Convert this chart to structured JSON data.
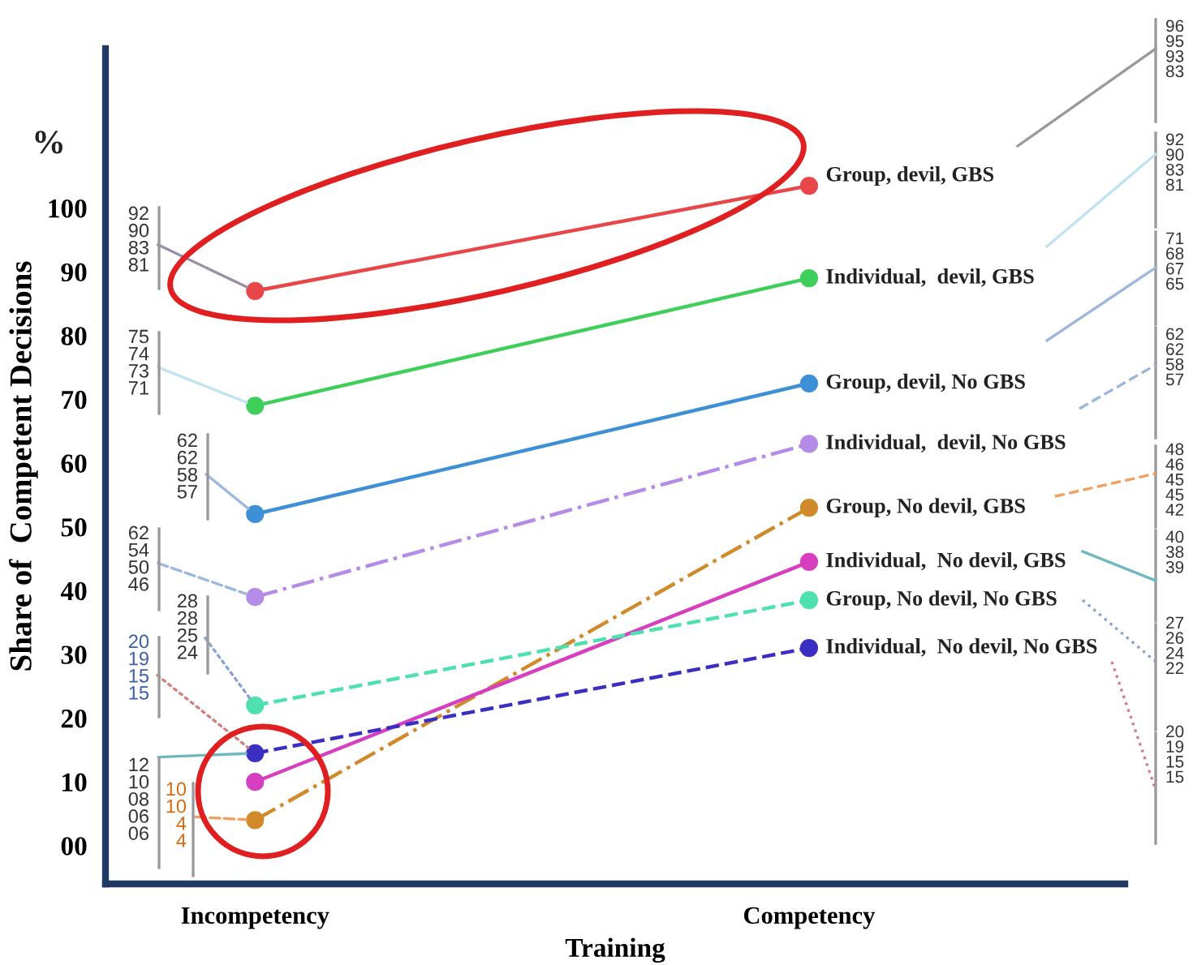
{
  "chart_data": {
    "type": "line",
    "xlabel": "Training",
    "ylabel": "Share of  Competent Decisions",
    "categories": [
      "Incompetency",
      "Competency"
    ],
    "ylim": [
      -6,
      125
    ],
    "yticks": [
      {
        "value": 0,
        "label": "00"
      },
      10,
      20,
      30,
      40,
      50,
      60,
      70,
      80,
      90,
      100
    ],
    "marker": "circle",
    "grid": false,
    "legend": false,
    "series": [
      {
        "name": "Group, devil, GBS",
        "color": "#e8474a",
        "line_style": "solid",
        "values": [
          87,
          103.5
        ]
      },
      {
        "name": "Individual,  devil, GBS",
        "color": "#3ecf5a",
        "line_style": "solid",
        "values": [
          69,
          89
        ]
      },
      {
        "name": "Group, devil, No GBS",
        "color": "#3d8fd6",
        "line_style": "solid",
        "values": [
          52,
          72.5
        ]
      },
      {
        "name": "Individual,  devil, No GBS",
        "color": "#b58be8",
        "line_style": "dashdot",
        "values": [
          39,
          63
        ]
      },
      {
        "name": "Group, No devil, GBS",
        "color": "#d08a2a",
        "line_style": "dashdot",
        "values": [
          4,
          53
        ]
      },
      {
        "name": "Individual,  No devil, GBS",
        "color": "#d63fbf",
        "line_style": "solid",
        "values": [
          10,
          44.5
        ]
      },
      {
        "name": "Group, No devil, No GBS",
        "color": "#4fe0b0",
        "line_style": "dashed",
        "values": [
          22,
          38.5
        ]
      },
      {
        "name": "Individual,  No devil, No GBS",
        "color": "#3a2fc0",
        "line_style": "dashed",
        "values": [
          14.5,
          31
        ]
      }
    ],
    "annotations": [
      "%",
      {
        "text": "92\n90\n83\n81",
        "x": "Incompetency",
        "y": 87
      },
      {
        "text": "75\n74\n73\n71",
        "x": "Incompetency",
        "y": 69
      },
      {
        "text": "62\n62\n58\n57",
        "x": "Incompetency",
        "y": 52
      },
      {
        "text": "62\n54\n50\n46",
        "x": "Incompetency",
        "y": 39
      },
      {
        "text": "28\n28\n25\n24",
        "x": "Incompetency",
        "y": 22
      },
      {
        "text": "20\n19\n15\n15",
        "x": "Incompetency",
        "y": 14.5
      },
      {
        "text": "12\n10\n08\n06\n06",
        "x": "Incompetency",
        "y": 14.5
      },
      {
        "text": "10\n10\n4\n4",
        "x": "Incompetency",
        "y": 4
      },
      "96\n95\n93\n83",
      "92\n90\n83\n81",
      "71\n68\n67\n65",
      "62\n62\n58\n57",
      "48\n46\n45\n45\n42",
      "40\n38\n39",
      "27\n26\n24\n22",
      "20\n19\n15\n15"
    ]
  }
}
